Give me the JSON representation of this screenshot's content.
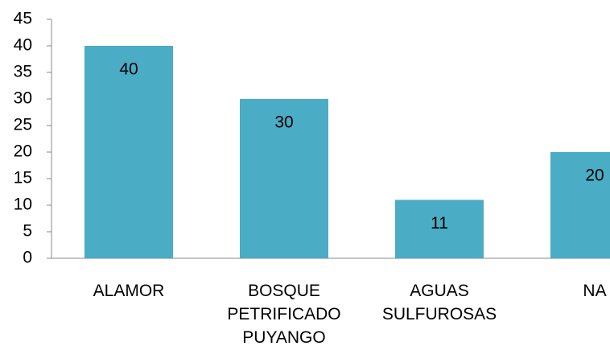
{
  "chart_data": {
    "type": "bar",
    "categories": [
      "ALAMOR",
      "BOSQUE PETRIFICADO PUYANGO",
      "AGUAS SULFUROSAS",
      "NA"
    ],
    "values": [
      40,
      30,
      11,
      20
    ],
    "color": "#4bacc6",
    "ylim": [
      0,
      45
    ],
    "yticks": [
      0,
      5,
      10,
      15,
      20,
      25,
      30,
      35,
      40,
      45
    ],
    "grid": false
  }
}
